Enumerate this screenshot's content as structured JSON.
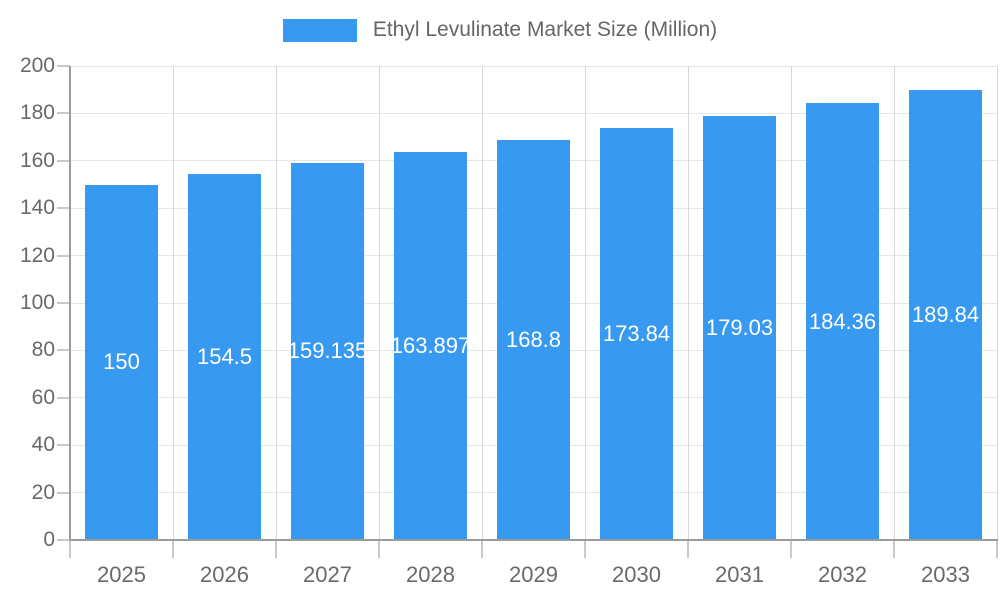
{
  "chart_data": {
    "type": "bar",
    "title": "Ethyl Levulinate Market Size (Million)",
    "categories": [
      "2025",
      "2026",
      "2027",
      "2028",
      "2029",
      "2030",
      "2031",
      "2032",
      "2033"
    ],
    "values": [
      150,
      154.5,
      159.135,
      163.897,
      168.8,
      173.84,
      179.03,
      184.36,
      189.84
    ],
    "value_labels": [
      "150",
      "154.5",
      "159.135",
      "163.897",
      "168.8",
      "173.84",
      "179.03",
      "184.36",
      "189.84"
    ],
    "xlabel": "",
    "ylabel": "",
    "ylim": [
      0,
      200
    ],
    "ytick_step": 20,
    "ytick_labels": [
      "0",
      "20",
      "40",
      "60",
      "80",
      "100",
      "120",
      "140",
      "160",
      "180",
      "200"
    ],
    "grid": true,
    "legend_position": "top",
    "value_label_position": "inside-center"
  },
  "colors": {
    "bar": "#3899f0",
    "hgrid": "#e6e6e6",
    "vgrid": "#d8d8d8",
    "axis": "#9b9b9b",
    "tick": "#c9c9c9",
    "axis_text": "#696969",
    "legend_text": "#666666",
    "value_text": "#ffffff"
  }
}
